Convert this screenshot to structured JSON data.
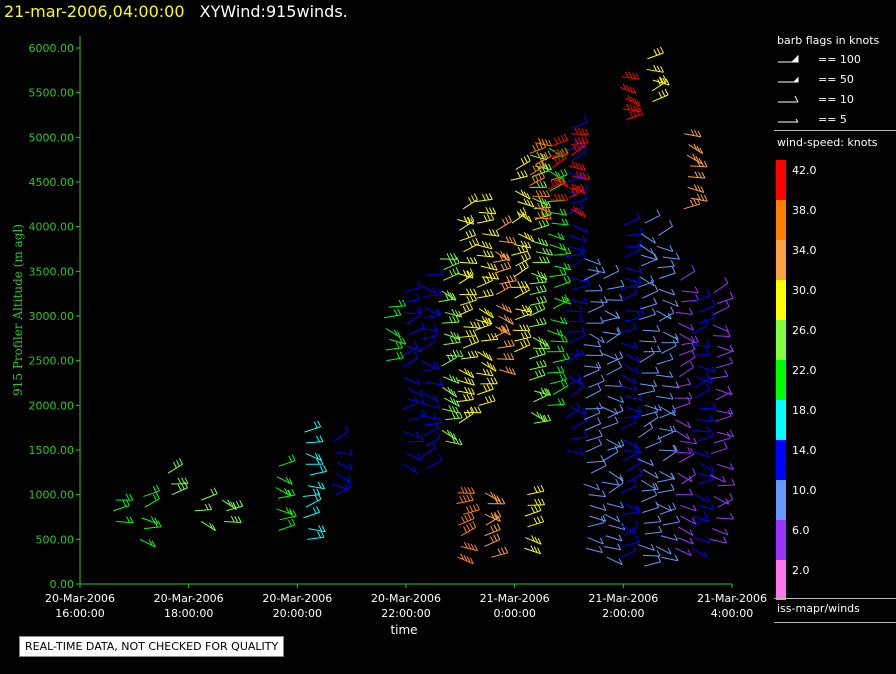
{
  "title": {
    "datetime": "21-mar-2006,04:00:00",
    "product": "XYWind:915winds."
  },
  "chart_data": {
    "type": "scatter",
    "subtype": "wind-barb time-height plot",
    "ylabel": "915 Profiler Altitude (m agl)",
    "xlabel": "time",
    "ylim": [
      0,
      6000
    ],
    "yticks": [
      "0.00",
      "500.00",
      "1000.00",
      "1500.00",
      "2000.00",
      "2500.00",
      "3000.00",
      "3500.00",
      "4000.00",
      "4500.00",
      "5000.00",
      "5500.00",
      "6000.00"
    ],
    "xlim": [
      "20-Mar-2006 16:00:00",
      "21-Mar-2006 04:00:00"
    ],
    "xticks": [
      {
        "date": "20-Mar-2006",
        "time": "16:00:00"
      },
      {
        "date": "20-Mar-2006",
        "time": "18:00:00"
      },
      {
        "date": "20-Mar-2006",
        "time": "20:00:00"
      },
      {
        "date": "20-Mar-2006",
        "time": "22:00:00"
      },
      {
        "date": "21-Mar-2006",
        "time": "0:00:00"
      },
      {
        "date": "21-Mar-2006",
        "time": "2:00:00"
      },
      {
        "date": "21-Mar-2006",
        "time": "4:00:00"
      }
    ],
    "colors": {
      "axis": "#22cc22",
      "tick_label": "#22cc22",
      "ylabel": "#22cc22"
    },
    "columns": [
      {
        "time": "20-Mar-2006 16:40",
        "alt": [
          700,
          1000
        ],
        "speed": 23
      },
      {
        "time": "20-Mar-2006 17:10",
        "alt": [
          500,
          1000
        ],
        "speed": 20
      },
      {
        "time": "20-Mar-2006 17:40",
        "alt": [
          1000,
          1350
        ],
        "speed": 26
      },
      {
        "time": "20-Mar-2006 18:10",
        "alt": [
          700,
          1000
        ],
        "speed": 24
      },
      {
        "time": "20-Mar-2006 18:40",
        "alt": [
          700,
          950
        ],
        "speed": 26
      },
      {
        "time": "20-Mar-2006 19:40",
        "alt": [
          600,
          1350
        ],
        "speed": 20
      },
      {
        "time": "20-Mar-2006 20:10",
        "alt": [
          500,
          1700
        ],
        "speed": 16
      },
      {
        "time": "20-Mar-2006 20:40",
        "alt": [
          1000,
          1700
        ],
        "speed": 14
      },
      {
        "time": "20-Mar-2006 21:40",
        "alt": [
          2500,
          3150
        ],
        "speed": 22
      },
      {
        "time": "20-Mar-2006 22:00",
        "alt": [
          1350,
          3300
        ],
        "speed": 14
      },
      {
        "time": "20-Mar-2006 22:20",
        "alt": [
          1300,
          3500
        ],
        "speed": 14
      },
      {
        "time": "20-Mar-2006 22:40",
        "alt": [
          1600,
          3700
        ],
        "speed": 26
      },
      {
        "time": "20-Mar-2006 23:00",
        "alt": [
          1800,
          4200
        ],
        "speed": 30
      },
      {
        "time": "20-Mar-2006 23:20",
        "alt": [
          2000,
          4300
        ],
        "speed": 28
      },
      {
        "time": "20-Mar-2006 23:40",
        "alt": [
          2400,
          4000
        ],
        "speed": 34
      },
      {
        "time": "21-Mar-2006 0:00",
        "alt": [
          2600,
          4700
        ],
        "speed": 30
      },
      {
        "time": "21-Mar-2006 0:20",
        "alt": [
          1800,
          4900
        ],
        "speed": 26
      },
      {
        "time": "21-Mar-2006 0:40",
        "alt": [
          2000,
          4900
        ],
        "speed": 22
      },
      {
        "time": "21-Mar-2006 1:00",
        "alt": [
          1500,
          5100
        ],
        "speed": 14
      },
      {
        "time": "21-Mar-2006 1:20",
        "alt": [
          400,
          3700
        ],
        "speed": 10
      },
      {
        "time": "21-Mar-2006 1:40",
        "alt": [
          300,
          3500
        ],
        "speed": 8
      },
      {
        "time": "21-Mar-2006 2:00",
        "alt": [
          300,
          4100
        ],
        "speed": 14
      },
      {
        "time": "21-Mar-2006 2:20",
        "alt": [
          200,
          4100
        ],
        "speed": 8
      },
      {
        "time": "21-Mar-2006 2:40",
        "alt": [
          300,
          3900
        ],
        "speed": 10
      },
      {
        "time": "21-Mar-2006 3:00",
        "alt": [
          400,
          3400
        ],
        "speed": 6
      },
      {
        "time": "21-Mar-2006 3:20",
        "alt": [
          400,
          3200
        ],
        "speed": 14
      },
      {
        "time": "21-Mar-2006 3:40",
        "alt": [
          500,
          3300
        ],
        "speed": 6
      },
      {
        "time": "20-Mar-2006 23:00",
        "alt": [
          300,
          1100
        ],
        "speed": 38
      },
      {
        "time": "20-Mar-2006 23:30",
        "alt": [
          300,
          1100
        ],
        "speed": 34
      },
      {
        "time": "21-Mar-2006 0:10",
        "alt": [
          400,
          1000
        ],
        "speed": 30
      },
      {
        "time": "21-Mar-2006 0:20",
        "alt": [
          4100,
          5000
        ],
        "speed": 38
      },
      {
        "time": "21-Mar-2006 0:40",
        "alt": [
          4300,
          5000
        ],
        "speed": 42
      },
      {
        "time": "21-Mar-2006 1:00",
        "alt": [
          4200,
          5100
        ],
        "speed": 40
      },
      {
        "time": "21-Mar-2006 2:00",
        "alt": [
          5200,
          5700
        ],
        "speed": 42
      },
      {
        "time": "21-Mar-2006 2:30",
        "alt": [
          5400,
          5900
        ],
        "speed": 30
      },
      {
        "time": "21-Mar-2006 3:10",
        "alt": [
          4200,
          5100
        ],
        "speed": 34
      }
    ]
  },
  "legend": {
    "flags_title": "barb flags in knots",
    "flags": [
      {
        "label": "== 100",
        "kind": "pennant"
      },
      {
        "label": "== 50",
        "kind": "halfpennant"
      },
      {
        "label": "== 10",
        "kind": "barb"
      },
      {
        "label": "== 5",
        "kind": "halfbarb"
      }
    ],
    "colorbar_title": "wind-speed: knots",
    "colorbar": [
      {
        "label": "42.0",
        "color": "#ff0000"
      },
      {
        "label": "38.0",
        "color": "#ff7f00"
      },
      {
        "label": "34.0",
        "color": "#ffa040"
      },
      {
        "label": "30.0",
        "color": "#ffff00"
      },
      {
        "label": "26.0",
        "color": "#80ff40"
      },
      {
        "label": "22.0",
        "color": "#00ff00"
      },
      {
        "label": "18.0",
        "color": "#00ffff"
      },
      {
        "label": "14.0",
        "color": "#0000ff"
      },
      {
        "label": "10.0",
        "color": "#6699ff"
      },
      {
        "label": "6.0",
        "color": "#9933ff"
      },
      {
        "label": "2.0",
        "color": "#ff77ee"
      }
    ],
    "source": "iss-mapr/winds"
  },
  "notice": "REAL-TIME DATA, NOT CHECKED FOR QUALITY"
}
